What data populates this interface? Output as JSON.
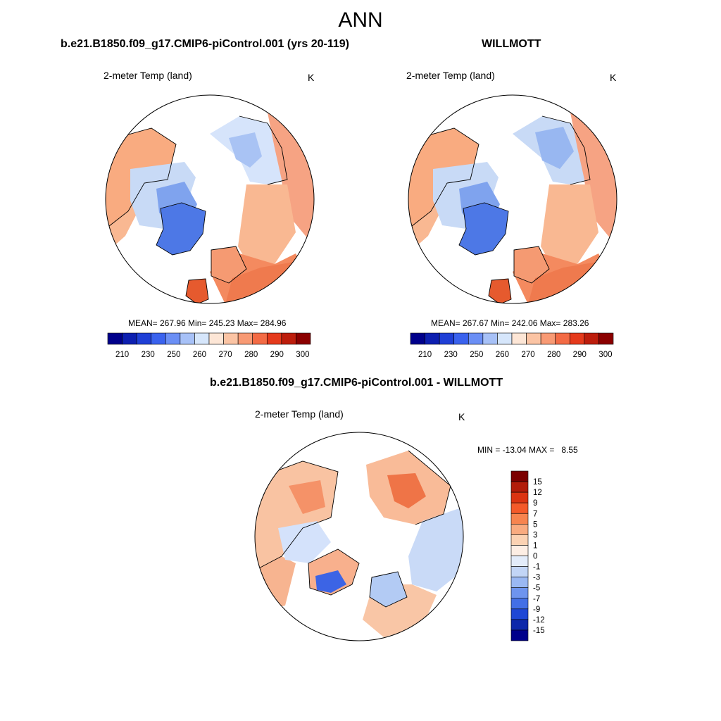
{
  "page_title": "ANN",
  "panels": [
    {
      "case_title": "b.e21.B1850.f09_g17.CMIP6-piControl.001 (yrs 20-119)",
      "variable": "2-meter Temp (land)",
      "units": "K",
      "stats": "MEAN= 267.96  Min= 245.23  Max= 284.96",
      "colorbar_ticks": [
        "210",
        "230",
        "250",
        "260",
        "270",
        "280",
        "290",
        "300"
      ]
    },
    {
      "case_title": "WILLMOTT",
      "variable": "2-meter Temp (land)",
      "units": "K",
      "stats": "MEAN= 267.67  Min= 242.06  Max= 283.26",
      "colorbar_ticks": [
        "210",
        "230",
        "250",
        "260",
        "270",
        "280",
        "290",
        "300"
      ]
    }
  ],
  "difference": {
    "title": "b.e21.B1850.f09_g17.CMIP6-piControl.001 - WILLMOTT",
    "variable": "2-meter Temp (land)",
    "units": "K",
    "stats": "MIN = -13.04 MAX =   8.55",
    "colorbar_ticks": [
      "15",
      "12",
      "9",
      "7",
      "5",
      "3",
      "1",
      "0",
      "-1",
      "-3",
      "-5",
      "-7",
      "-9",
      "-12",
      "-15"
    ]
  },
  "colors": {
    "abs_scale": [
      "#00008b",
      "#0d1fb0",
      "#1f3fd6",
      "#3a62ee",
      "#6b8ff5",
      "#a7c1f7",
      "#d6e6fb",
      "#fde6d6",
      "#fbc4a4",
      "#f89a74",
      "#f36b45",
      "#e53a1c",
      "#bd1d0c",
      "#8b0000"
    ],
    "diff_scale": [
      "#7b0000",
      "#b21c0a",
      "#db3412",
      "#f45a2a",
      "#f7844f",
      "#f9ab80",
      "#fbd2b3",
      "#fdeee4",
      "#e3ecfa",
      "#c2d5f6",
      "#9ab8f3",
      "#6e94ee",
      "#436fe6",
      "#1f48d5",
      "#0d28aa",
      "#00008b"
    ]
  }
}
